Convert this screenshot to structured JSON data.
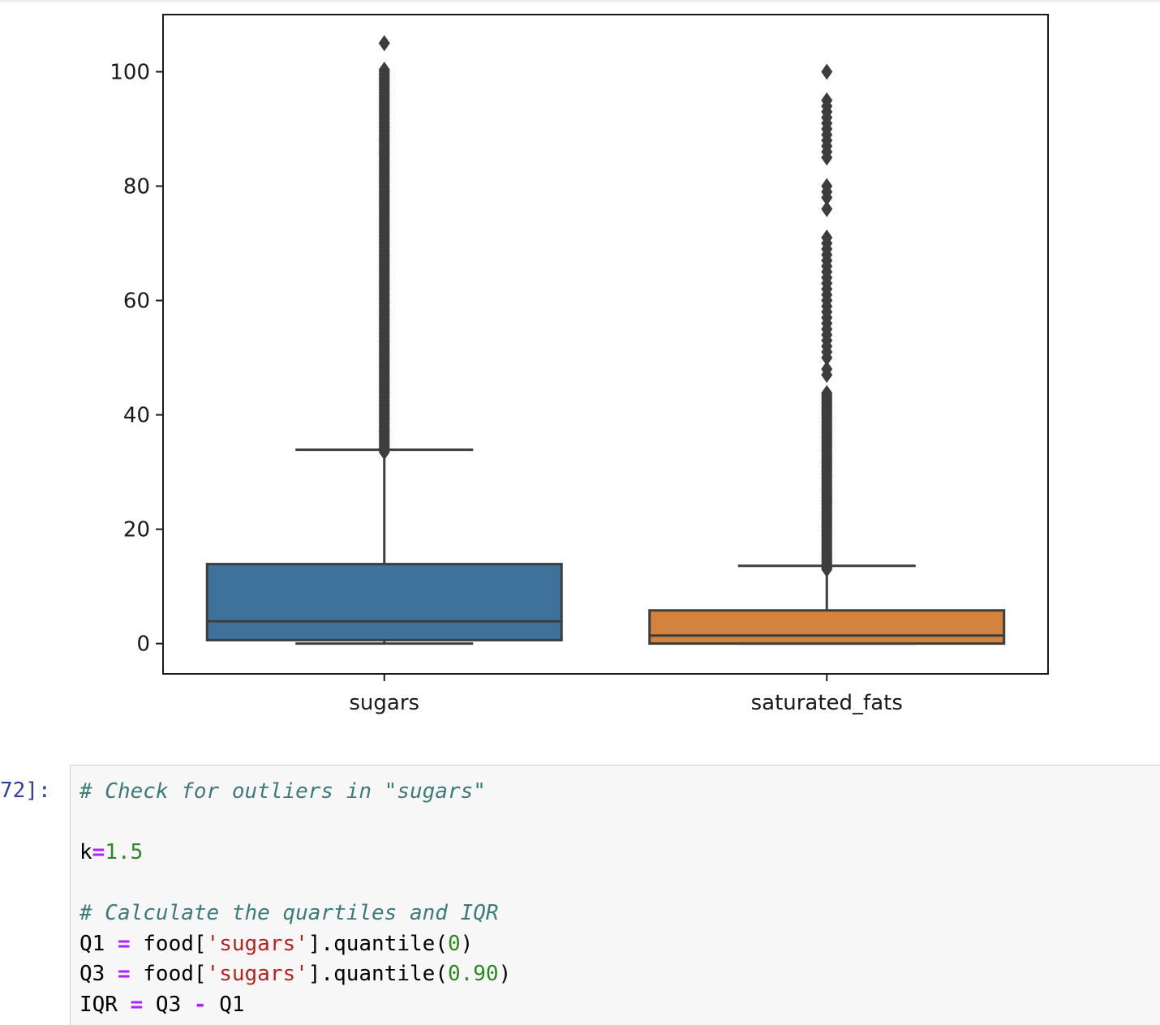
{
  "chart_data": {
    "type": "boxplot",
    "categories": [
      "sugars",
      "saturated_fats"
    ],
    "ylim": [
      -5.3,
      110
    ],
    "yticks": [
      0,
      20,
      40,
      60,
      80,
      100
    ],
    "ytick_labels": [
      "0",
      "20",
      "40",
      "60",
      "80",
      "100"
    ],
    "boxes": [
      {
        "name": "sugars",
        "color": "#3e729b",
        "whisker_low": 0,
        "q1": 0.6,
        "median": 3.9,
        "q3": 13.9,
        "whisker_high": 33.9,
        "outlier_range": [
          33.5,
          100.5
        ],
        "outliers_sparse": [
          105
        ]
      },
      {
        "name": "saturated_fats",
        "color": "#d4823e",
        "whisker_low": 0,
        "q1": 0,
        "median": 1.4,
        "q3": 5.8,
        "whisker_high": 13.6,
        "outlier_range": [
          13.0,
          44
        ],
        "outliers_sparse": [
          100,
          95,
          94,
          93,
          92,
          91,
          90,
          89,
          88,
          87,
          86,
          85,
          80,
          79,
          78,
          76,
          71,
          70,
          69,
          68,
          67,
          66,
          65,
          64,
          63,
          62,
          61,
          60,
          59,
          58,
          57,
          56,
          55,
          54,
          53,
          52,
          51,
          50,
          48,
          47
        ]
      }
    ]
  },
  "cell": {
    "prompt": "72]:",
    "lines": [
      [
        {
          "t": "# Check for outliers in \"sugars\"",
          "k": "comment"
        }
      ],
      [],
      [
        {
          "t": "k",
          "k": "plain"
        },
        {
          "t": "=",
          "k": "op"
        },
        {
          "t": "1.5",
          "k": "num"
        }
      ],
      [],
      [
        {
          "t": "# Calculate the quartiles and IQR",
          "k": "comment"
        }
      ],
      [
        {
          "t": "Q1 ",
          "k": "plain"
        },
        {
          "t": "=",
          "k": "op"
        },
        {
          "t": " food[",
          "k": "plain"
        },
        {
          "t": "'sugars'",
          "k": "str"
        },
        {
          "t": "].quantile(",
          "k": "plain"
        },
        {
          "t": "0",
          "k": "num"
        },
        {
          "t": ")",
          "k": "plain"
        }
      ],
      [
        {
          "t": "Q3 ",
          "k": "plain"
        },
        {
          "t": "=",
          "k": "op"
        },
        {
          "t": " food[",
          "k": "plain"
        },
        {
          "t": "'sugars'",
          "k": "str"
        },
        {
          "t": "].quantile(",
          "k": "plain"
        },
        {
          "t": "0.90",
          "k": "num"
        },
        {
          "t": ")",
          "k": "plain"
        }
      ],
      [
        {
          "t": "IQR ",
          "k": "plain"
        },
        {
          "t": "=",
          "k": "op"
        },
        {
          "t": " Q3 ",
          "k": "plain"
        },
        {
          "t": "-",
          "k": "op"
        },
        {
          "t": " Q1",
          "k": "plain"
        }
      ]
    ]
  }
}
